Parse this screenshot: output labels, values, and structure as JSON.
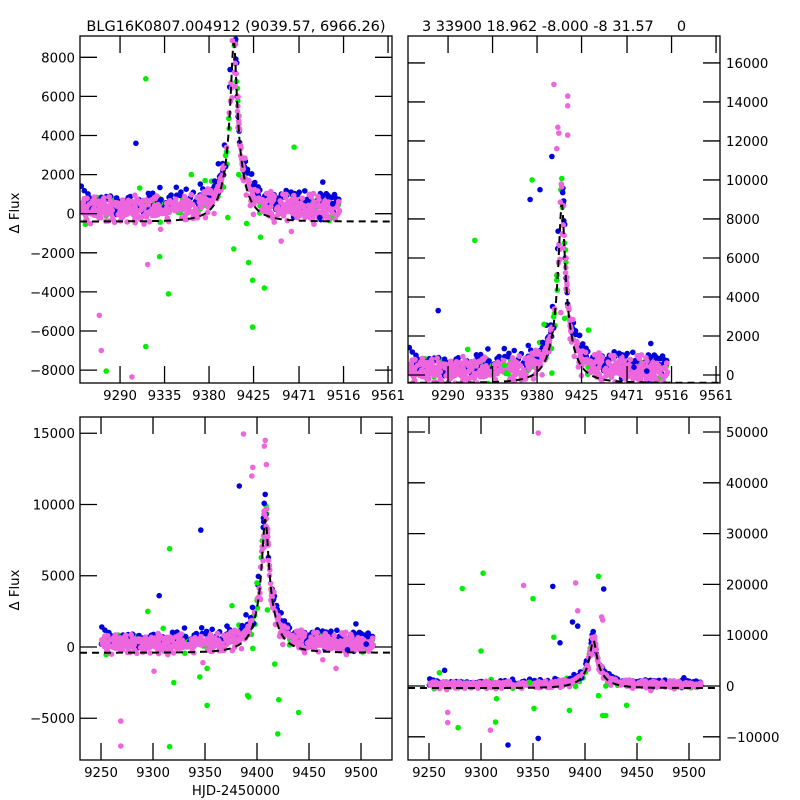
{
  "chart_data": [
    {
      "id": "top-left",
      "type": "scatter",
      "title": "BLG16K0807.004912 (9039.57, 6966.26)",
      "xlabel": "",
      "ylabel": "Δ Flux",
      "xlim": [
        9249.5,
        9565
      ],
      "ylim": [
        -8660,
        9090
      ],
      "xticks": [
        9290,
        9335,
        9380,
        9425,
        9471,
        9516,
        9561
      ],
      "xtick_labels": [
        "9290",
        "9335",
        "9380",
        "9425",
        "9471",
        "9516",
        "9561"
      ],
      "yticks": [
        -8000,
        -6000,
        -4000,
        -2000,
        0,
        2000,
        4000,
        6000,
        8000
      ],
      "ytick_labels": [
        "−8000",
        "−6000",
        "−4000",
        "−2000",
        "0",
        "2000",
        "4000",
        "6000",
        "8000"
      ],
      "ytick_side": "left",
      "model": {
        "t0": 9405,
        "peak": 8800,
        "tE": 27,
        "base": 0,
        "style": "dashed",
        "color": "#000000"
      },
      "outliers": [
        {
          "x": 9269,
          "y": -5200,
          "c": "pink"
        },
        {
          "x": 9271,
          "y": -7000,
          "c": "pink"
        },
        {
          "x": 9276,
          "y": -8050,
          "c": "green"
        },
        {
          "x": 9302,
          "y": -8350,
          "c": "pink"
        },
        {
          "x": 9316,
          "y": -6800,
          "c": "green"
        },
        {
          "x": 9316,
          "y": 6900,
          "c": "green"
        },
        {
          "x": 9306,
          "y": 3600,
          "c": "blue"
        },
        {
          "x": 9330,
          "y": -2200,
          "c": "green"
        },
        {
          "x": 9339,
          "y": -4100,
          "c": "green"
        },
        {
          "x": 9399,
          "y": -200,
          "c": "green"
        },
        {
          "x": 9405,
          "y": -1800,
          "c": "green"
        },
        {
          "x": 9418,
          "y": -500,
          "c": "green"
        },
        {
          "x": 9424,
          "y": -3400,
          "c": "green"
        },
        {
          "x": 9424,
          "y": -5800,
          "c": "green"
        },
        {
          "x": 9420,
          "y": -2500,
          "c": "green"
        },
        {
          "x": 9432,
          "y": -1200,
          "c": "green"
        },
        {
          "x": 9436,
          "y": -3800,
          "c": "green"
        },
        {
          "x": 9453,
          "y": -1400,
          "c": "pink"
        },
        {
          "x": 9318,
          "y": -2600,
          "c": "pink"
        },
        {
          "x": 9331,
          "y": -800,
          "c": "pink"
        },
        {
          "x": 9492,
          "y": -200,
          "c": "blue"
        },
        {
          "x": 9505,
          "y": 500,
          "c": "blue"
        },
        {
          "x": 9466,
          "y": 3400,
          "c": "green"
        },
        {
          "x": 9376,
          "y": 1700,
          "c": "green"
        },
        {
          "x": 9362,
          "y": 2000,
          "c": "green"
        },
        {
          "x": 9410,
          "y": 2000,
          "c": "green"
        }
      ]
    },
    {
      "id": "top-right",
      "type": "scatter",
      "title": "3 33900 18.962 -8.000 -8 31.57     0",
      "xlabel": "",
      "ylabel": "",
      "xlim": [
        9249.5,
        9565
      ],
      "ylim": [
        -410,
        17380
      ],
      "xticks": [
        9290,
        9335,
        9380,
        9425,
        9471,
        9516,
        9561
      ],
      "xtick_labels": [
        "9290",
        "9335",
        "9380",
        "9425",
        "9471",
        "9516",
        "9561"
      ],
      "yticks": [
        0,
        2000,
        4000,
        6000,
        8000,
        10000,
        12000,
        14000,
        16000
      ],
      "ytick_labels": [
        "0",
        "2000",
        "4000",
        "6000",
        "8000",
        "10000",
        "12000",
        "14000",
        "16000"
      ],
      "ytick_side": "right",
      "model": {
        "t0": 9405,
        "peak": 8800,
        "tE": 27,
        "base": 0,
        "style": "dashed",
        "color": "#000000"
      },
      "outliers": [
        {
          "x": 9397,
          "y": 14900,
          "c": "pink"
        },
        {
          "x": 9411,
          "y": 14300,
          "c": "pink"
        },
        {
          "x": 9411,
          "y": 13800,
          "c": "pink"
        },
        {
          "x": 9401,
          "y": 12700,
          "c": "pink"
        },
        {
          "x": 9402,
          "y": 12400,
          "c": "pink"
        },
        {
          "x": 9411,
          "y": 12300,
          "c": "pink"
        },
        {
          "x": 9400,
          "y": 11600,
          "c": "pink"
        },
        {
          "x": 9395,
          "y": 11200,
          "c": "blue"
        },
        {
          "x": 9375,
          "y": 10000,
          "c": "green"
        },
        {
          "x": 9383,
          "y": 9500,
          "c": "blue"
        },
        {
          "x": 9373,
          "y": 9000,
          "c": "blue"
        },
        {
          "x": 9317,
          "y": 6900,
          "c": "green"
        },
        {
          "x": 9400,
          "y": 5100,
          "c": "green"
        },
        {
          "x": 9404,
          "y": 3200,
          "c": "pink"
        },
        {
          "x": 9408,
          "y": 2900,
          "c": "green"
        },
        {
          "x": 9387,
          "y": 2600,
          "c": "green"
        },
        {
          "x": 9432,
          "y": 2300,
          "c": "green"
        },
        {
          "x": 9395,
          "y": 100,
          "c": "green"
        },
        {
          "x": 9280,
          "y": 3300,
          "c": "blue"
        },
        {
          "x": 9347,
          "y": 500,
          "c": "green"
        },
        {
          "x": 9349,
          "y": 100,
          "c": "green"
        },
        {
          "x": 9463,
          "y": 1100,
          "c": "blue"
        },
        {
          "x": 9478,
          "y": 400,
          "c": "blue"
        },
        {
          "x": 9491,
          "y": 200,
          "c": "blue"
        }
      ]
    },
    {
      "id": "bottom-left",
      "type": "scatter",
      "title": "",
      "xlabel": "HJD-2450000",
      "ylabel": "Δ Flux",
      "xlim": [
        9229.8,
        9529.8
      ],
      "ylim": [
        -7930,
        16140
      ],
      "xticks": [
        9250,
        9300,
        9350,
        9400,
        9450,
        9500
      ],
      "xtick_labels": [
        "9250",
        "9300",
        "9350",
        "9400",
        "9450",
        "9500"
      ],
      "yticks": [
        -5000,
        0,
        5000,
        10000,
        15000
      ],
      "ytick_labels": [
        "−5000",
        "0",
        "5000",
        "10000",
        "15000"
      ],
      "ytick_side": "left",
      "model": {
        "t0": 9408,
        "peak": 9000,
        "tE": 27,
        "base": 0,
        "style": "dashed",
        "color": "#000000"
      },
      "outliers": [
        {
          "x": 9387,
          "y": 14950,
          "c": "pink"
        },
        {
          "x": 9408,
          "y": 14500,
          "c": "pink"
        },
        {
          "x": 9407,
          "y": 14100,
          "c": "pink"
        },
        {
          "x": 9409,
          "y": 12800,
          "c": "pink"
        },
        {
          "x": 9396,
          "y": 12600,
          "c": "pink"
        },
        {
          "x": 9395,
          "y": 12000,
          "c": "pink"
        },
        {
          "x": 9383,
          "y": 11300,
          "c": "blue"
        },
        {
          "x": 9346,
          "y": 8200,
          "c": "blue"
        },
        {
          "x": 9316,
          "y": 6900,
          "c": "green"
        },
        {
          "x": 9306,
          "y": 3600,
          "c": "blue"
        },
        {
          "x": 9295,
          "y": 2500,
          "c": "green"
        },
        {
          "x": 9376,
          "y": 2900,
          "c": "green"
        },
        {
          "x": 9400,
          "y": 4500,
          "c": "green"
        },
        {
          "x": 9403,
          "y": 3400,
          "c": "pink"
        },
        {
          "x": 9410,
          "y": 2600,
          "c": "green"
        },
        {
          "x": 9301,
          "y": -1700,
          "c": "pink"
        },
        {
          "x": 9320,
          "y": -2500,
          "c": "green"
        },
        {
          "x": 9352,
          "y": -4100,
          "c": "green"
        },
        {
          "x": 9391,
          "y": -3400,
          "c": "green"
        },
        {
          "x": 9421,
          "y": -3700,
          "c": "green"
        },
        {
          "x": 9269,
          "y": -5200,
          "c": "pink"
        },
        {
          "x": 9269,
          "y": -6950,
          "c": "pink"
        },
        {
          "x": 9316,
          "y": -7000,
          "c": "green"
        },
        {
          "x": 9420,
          "y": -6100,
          "c": "green"
        },
        {
          "x": 9392,
          "y": -3500,
          "c": "green"
        },
        {
          "x": 9440,
          "y": -4600,
          "c": "green"
        },
        {
          "x": 9396,
          "y": -100,
          "c": "green"
        },
        {
          "x": 9417,
          "y": -1200,
          "c": "green"
        },
        {
          "x": 9476,
          "y": -1500,
          "c": "pink"
        },
        {
          "x": 9352,
          "y": -1500,
          "c": "green"
        },
        {
          "x": 9345,
          "y": -2100,
          "c": "green"
        },
        {
          "x": 9348,
          "y": -1100,
          "c": "pink"
        },
        {
          "x": 9487,
          "y": -200,
          "c": "blue"
        },
        {
          "x": 9505,
          "y": 200,
          "c": "blue"
        }
      ]
    },
    {
      "id": "bottom-right",
      "type": "scatter",
      "title": "",
      "xlabel": "",
      "ylabel": "",
      "xlim": [
        9229.8,
        9529.8
      ],
      "ylim": [
        -14560,
        52950
      ],
      "xticks": [
        9250,
        9300,
        9350,
        9400,
        9450,
        9500
      ],
      "xtick_labels": [
        "9250",
        "9300",
        "9350",
        "9400",
        "9450",
        "9500"
      ],
      "yticks": [
        -10000,
        0,
        10000,
        20000,
        30000,
        40000,
        50000
      ],
      "ytick_labels": [
        "−10000",
        "0",
        "10000",
        "20000",
        "30000",
        "40000",
        "50000"
      ],
      "ytick_side": "right",
      "model": {
        "t0": 9408,
        "peak": 9000,
        "tE": 27,
        "base": 0,
        "style": "dashed",
        "color": "#000000"
      },
      "outliers": [
        {
          "x": 9355,
          "y": 49800,
          "c": "pink"
        },
        {
          "x": 9282,
          "y": 19200,
          "c": "green"
        },
        {
          "x": 9302,
          "y": 22200,
          "c": "green"
        },
        {
          "x": 9341,
          "y": 19800,
          "c": "pink"
        },
        {
          "x": 9350,
          "y": 17200,
          "c": "green"
        },
        {
          "x": 9369,
          "y": 19600,
          "c": "blue"
        },
        {
          "x": 9391,
          "y": 20300,
          "c": "pink"
        },
        {
          "x": 9413,
          "y": 21600,
          "c": "green"
        },
        {
          "x": 9418,
          "y": 19100,
          "c": "blue"
        },
        {
          "x": 9393,
          "y": 14800,
          "c": "pink"
        },
        {
          "x": 9416,
          "y": 13600,
          "c": "pink"
        },
        {
          "x": 9417,
          "y": 13000,
          "c": "pink"
        },
        {
          "x": 9393,
          "y": 11800,
          "c": "blue"
        },
        {
          "x": 9370,
          "y": 9600,
          "c": "green"
        },
        {
          "x": 9376,
          "y": 8500,
          "c": "blue"
        },
        {
          "x": 9388,
          "y": 12600,
          "c": "blue"
        },
        {
          "x": 9300,
          "y": 6900,
          "c": "green"
        },
        {
          "x": 9265,
          "y": 3100,
          "c": "blue"
        },
        {
          "x": 9260,
          "y": 2600,
          "c": "green"
        },
        {
          "x": 9267,
          "y": -700,
          "c": "pink"
        },
        {
          "x": 9268,
          "y": -5200,
          "c": "pink"
        },
        {
          "x": 9268,
          "y": -7200,
          "c": "pink"
        },
        {
          "x": 9278,
          "y": -8200,
          "c": "green"
        },
        {
          "x": 9309,
          "y": -8700,
          "c": "pink"
        },
        {
          "x": 9314,
          "y": -7100,
          "c": "green"
        },
        {
          "x": 9326,
          "y": -11600,
          "c": "blue"
        },
        {
          "x": 9355,
          "y": -10300,
          "c": "blue"
        },
        {
          "x": 9452,
          "y": -10300,
          "c": "green"
        },
        {
          "x": 9351,
          "y": -4400,
          "c": "green"
        },
        {
          "x": 9391,
          "y": -100,
          "c": "green"
        },
        {
          "x": 9420,
          "y": -5800,
          "c": "green"
        },
        {
          "x": 9440,
          "y": -3800,
          "c": "green"
        },
        {
          "x": 9385,
          "y": -4800,
          "c": "green"
        },
        {
          "x": 9413,
          "y": -1900,
          "c": "green"
        },
        {
          "x": 9417,
          "y": -5800,
          "c": "green"
        },
        {
          "x": 9347,
          "y": 700,
          "c": "green"
        },
        {
          "x": 9315,
          "y": -2500,
          "c": "green"
        },
        {
          "x": 9420,
          "y": 0,
          "c": "green"
        }
      ]
    }
  ],
  "series_colors": {
    "blue": "#0000dd",
    "green": "#00ee00",
    "pink": "#ee66dd"
  },
  "series_legend": [
    "blue",
    "green",
    "pink"
  ],
  "observed_range": {
    "start": 9250,
    "end": 9512
  },
  "model_curve_label": "dashed model"
}
